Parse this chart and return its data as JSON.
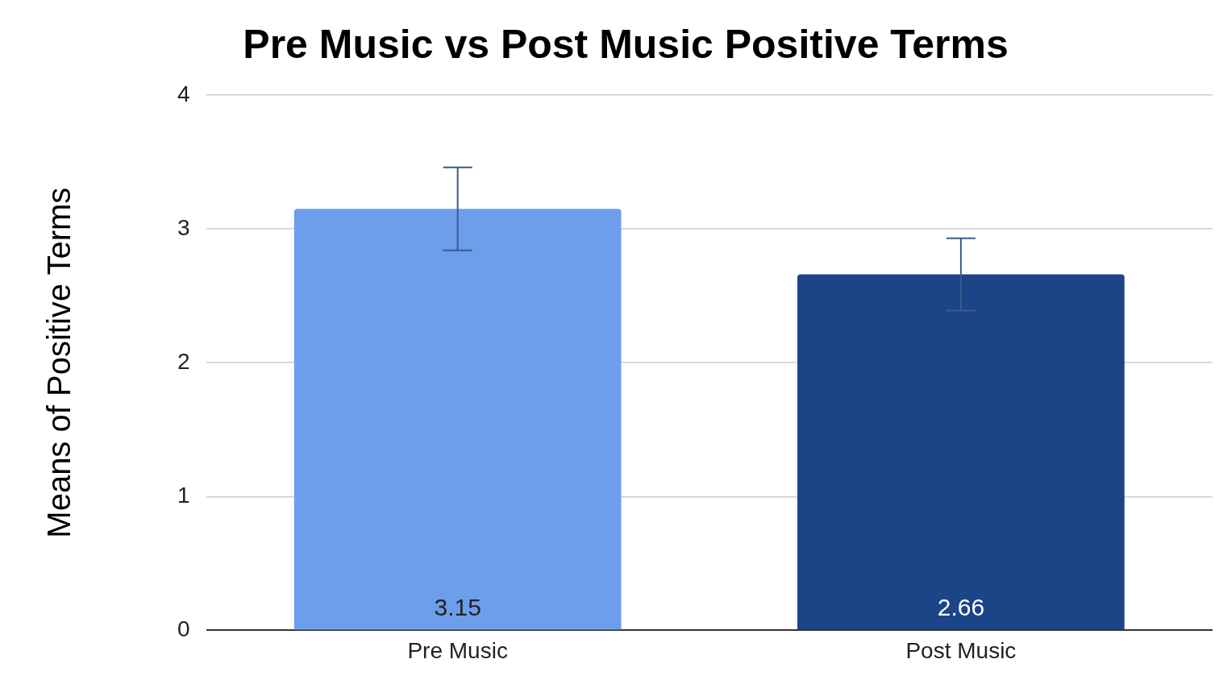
{
  "chart_data": {
    "type": "bar",
    "title": "Pre Music vs Post Music Positive Terms",
    "ylabel": "Means of Positive Terms",
    "categories": [
      "Pre Music",
      "Post Music"
    ],
    "values": [
      3.15,
      2.66
    ],
    "colors": [
      "#6d9eeb",
      "#1c4587"
    ],
    "errors": [
      0.31,
      0.27
    ],
    "ylim": [
      0,
      4
    ],
    "yticks": [
      0,
      1,
      2,
      3,
      4
    ],
    "grid": "y",
    "data_labels": true
  }
}
